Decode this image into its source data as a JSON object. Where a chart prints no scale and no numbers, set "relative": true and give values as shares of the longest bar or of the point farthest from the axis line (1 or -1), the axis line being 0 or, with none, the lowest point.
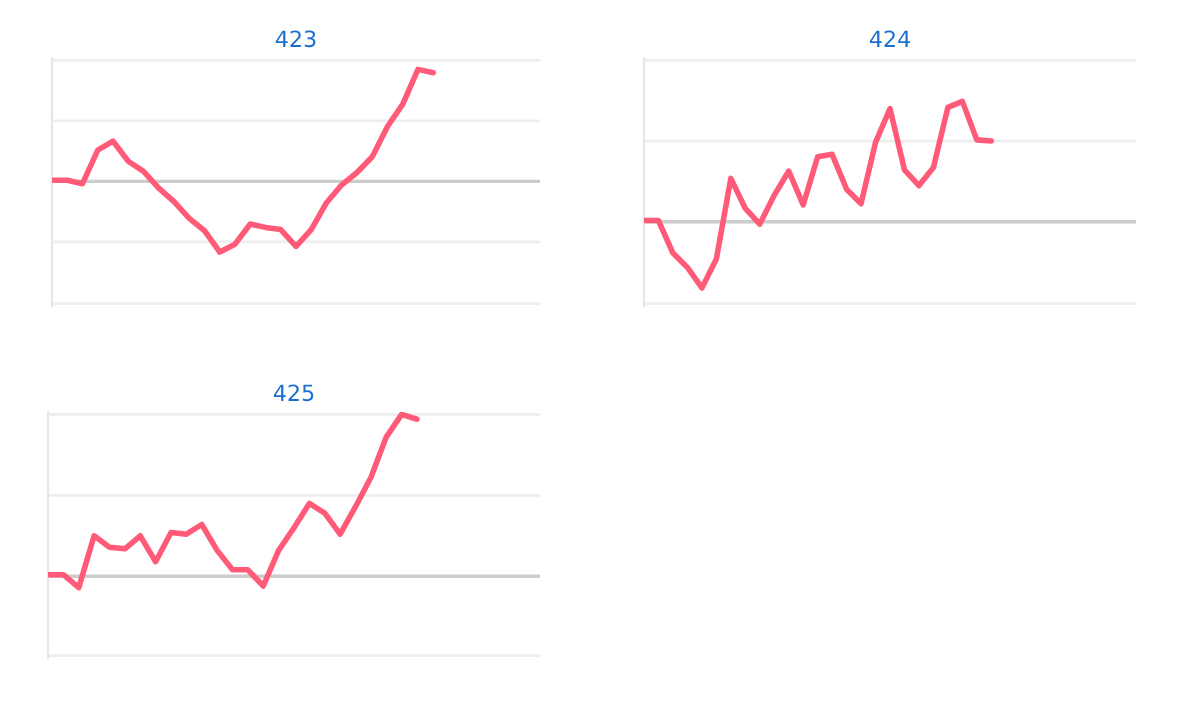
{
  "chart_data": [
    {
      "type": "line",
      "title": "423",
      "relative": true,
      "color": "#ff5a78",
      "categories": [
        null,
        null,
        null,
        null,
        null,
        null,
        null,
        null,
        null,
        null,
        null,
        null,
        null,
        null,
        null,
        null,
        null,
        null,
        null,
        null,
        null,
        null,
        null,
        null,
        null,
        null,
        null,
        null,
        null,
        null,
        null,
        null,
        null
      ],
      "values": [
        0.01,
        0.01,
        -0.02,
        0.28,
        0.36,
        0.18,
        0.09,
        -0.06,
        -0.18,
        -0.33,
        -0.44,
        -0.63,
        -0.56,
        -0.38,
        -0.41,
        -0.43,
        -0.58,
        -0.43,
        -0.19,
        -0.03,
        0.08,
        0.22,
        0.49,
        0.69,
        1,
        0.97,
        null,
        null,
        null,
        null,
        null,
        null,
        null
      ],
      "ref_lines": [
        {
          "axis": "y",
          "value": 1.08,
          "color": "#eeeeee"
        },
        {
          "axis": "y",
          "value": 0.54,
          "color": "#eeeeee"
        },
        {
          "axis": "y",
          "value": -0.54,
          "color": "#eeeeee"
        },
        {
          "axis": "y",
          "value": -1.09,
          "color": "#eeeeee"
        }
      ]
    },
    {
      "type": "line",
      "title": "424",
      "relative": true,
      "color": "#ff5a78",
      "categories": [
        null,
        null,
        null,
        null,
        null,
        null,
        null,
        null,
        null,
        null,
        null,
        null,
        null,
        null,
        null,
        null,
        null,
        null,
        null,
        null,
        null,
        null,
        null,
        null,
        null,
        null,
        null,
        null,
        null,
        null,
        null,
        null,
        null,
        null,
        null
      ],
      "values": [
        0.01,
        0.01,
        -0.26,
        -0.38,
        -0.55,
        -0.31,
        0.36,
        0.11,
        -0.02,
        0.22,
        0.42,
        0.14,
        0.54,
        0.56,
        0.27,
        0.15,
        0.66,
        0.94,
        0.43,
        0.3,
        0.45,
        0.95,
        1,
        0.68,
        0.67,
        null,
        null,
        null,
        null,
        null,
        null,
        null,
        null,
        null,
        null
      ],
      "ref_lines": [
        {
          "axis": "y",
          "value": 1.34,
          "color": "#eeeeee"
        },
        {
          "axis": "y",
          "value": 0.67,
          "color": "#eeeeee"
        },
        {
          "axis": "y",
          "value": -0.68,
          "color": "#eeeeee"
        }
      ]
    },
    {
      "type": "line",
      "title": "425",
      "relative": true,
      "color": "#ff5a78",
      "categories": [
        null,
        null,
        null,
        null,
        null,
        null,
        null,
        null,
        null,
        null,
        null,
        null,
        null,
        null,
        null,
        null,
        null,
        null,
        null,
        null,
        null,
        null,
        null,
        null,
        null,
        null,
        null,
        null,
        null,
        null,
        null,
        null,
        null
      ],
      "values": [
        0.01,
        0.01,
        -0.07,
        0.25,
        0.18,
        0.17,
        0.25,
        0.09,
        0.27,
        0.26,
        0.32,
        0.16,
        0.04,
        0.04,
        -0.06,
        0.16,
        0.3,
        0.45,
        0.39,
        0.26,
        0.43,
        0.61,
        0.86,
        1,
        0.97,
        null,
        null,
        null,
        null,
        null,
        null,
        null,
        null
      ],
      "ref_lines": [
        {
          "axis": "y",
          "value": 1.0,
          "color": "#eeeeee"
        },
        {
          "axis": "y",
          "value": 0.5,
          "color": "#eeeeee"
        },
        {
          "axis": "y",
          "value": -0.49,
          "color": "#eeeeee"
        }
      ]
    }
  ]
}
